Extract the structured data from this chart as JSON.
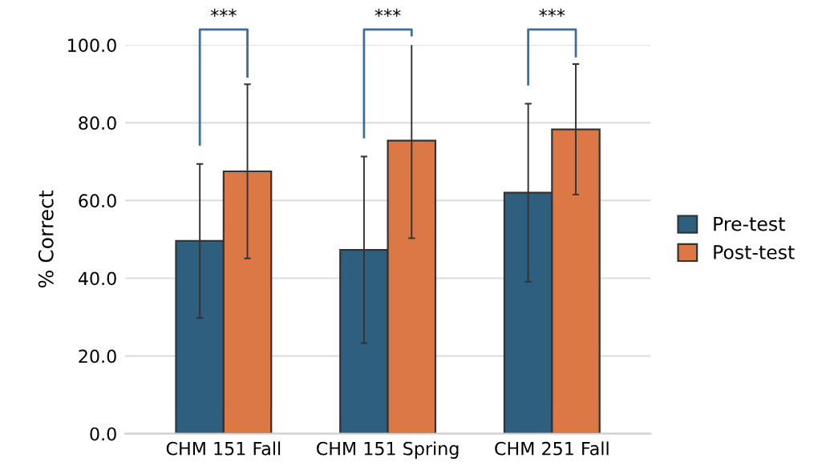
{
  "chart_data": {
    "type": "bar",
    "ylabel": "% Correct",
    "categories": [
      "CHM 151 Fall",
      "CHM 151 Spring",
      "CHM 251 Fall"
    ],
    "series": [
      {
        "name": "Pre-test",
        "color": "#2e5f7f",
        "values": [
          49.6,
          47.3,
          62.0
        ],
        "errors": [
          19.8,
          24.0,
          22.9
        ]
      },
      {
        "name": "Post-test",
        "color": "#dc7845",
        "values": [
          67.5,
          75.4,
          78.3
        ],
        "errors": [
          22.4,
          25.1,
          16.8
        ]
      }
    ],
    "ylim": [
      0,
      100
    ],
    "yticks": [
      {
        "value": 0,
        "label": "0.0"
      },
      {
        "value": 20,
        "label": "20.0"
      },
      {
        "value": 40,
        "label": "40.0"
      },
      {
        "value": 60,
        "label": "60.0"
      },
      {
        "value": 80,
        "label": "80.0"
      },
      {
        "value": 100,
        "label": "100.0"
      }
    ],
    "grid": "y",
    "legend": "right",
    "annotations": [
      "***",
      "***",
      "***"
    ]
  }
}
